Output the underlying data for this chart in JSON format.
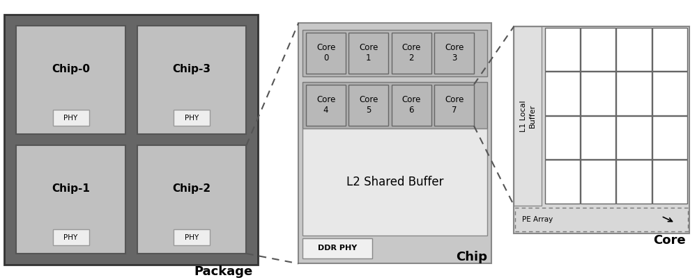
{
  "bg_color": "#ffffff",
  "package_bg": "#666666",
  "chip_box_bg": "#c0c0c0",
  "phy_box_bg": "#eeeeee",
  "chip_diagram_bg": "#c8c8c8",
  "core_row_bg": "#aaaaaa",
  "core_box_bg": "#b8b8b8",
  "l2_box_bg": "#e8e8e8",
  "ddr_box_bg": "#f0f0f0",
  "core_diagram_bg": "#d8d8d8",
  "l1_strip_bg": "#e0e0e0",
  "grid_cell_bg": "#ffffff",
  "package_label": "Package",
  "chip_label": "Chip",
  "core_label": "Core",
  "chips": [
    "Chip-0",
    "Chip-3",
    "Chip-1",
    "Chip-2"
  ],
  "cores_row1": [
    "Core\n0",
    "Core\n1",
    "Core\n2",
    "Core\n3"
  ],
  "cores_row2": [
    "Core\n4",
    "Core\n5",
    "Core\n6",
    "Core\n7"
  ],
  "l2_label": "L2 Shared Buffer",
  "ddr_label": "DDR PHY",
  "l1_label": "L1 Local\nBuffer",
  "pe_label": "PE Array"
}
